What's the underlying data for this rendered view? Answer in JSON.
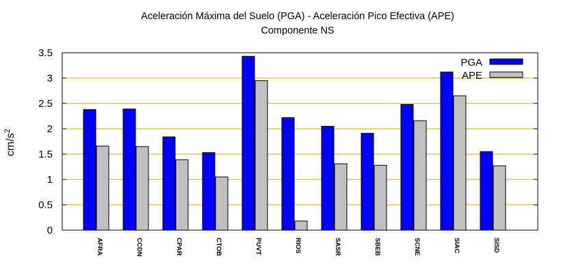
{
  "chart_data": {
    "type": "bar",
    "title": "Aceleración Máxima del Suelo (PGA) -  Aceleración Pico Efectiva (APE)",
    "subtitle": "Componente NS",
    "ylabel_base": "cm/s",
    "ylabel_sup": "2",
    "ylim": [
      0,
      3.5
    ],
    "yticks": [
      0,
      0.5,
      1,
      1.5,
      2,
      2.5,
      3,
      3.5
    ],
    "ytick_labels": [
      "0",
      "0.5",
      "1",
      "1.5",
      "2",
      "2.5",
      "3",
      "3.5"
    ],
    "grid": true,
    "legend_position": "top-right",
    "categories": [
      "AFRA",
      "CCDN",
      "CPAR",
      "CTOB",
      "PUVT",
      "RIOS",
      "SASR",
      "SBEB",
      "SCNE",
      "SIAC",
      "SISD"
    ],
    "series": [
      {
        "name": "PGA",
        "color": "#0000ff",
        "values": [
          2.38,
          2.39,
          1.84,
          1.53,
          3.43,
          2.22,
          2.05,
          1.91,
          2.48,
          3.12,
          1.55
        ]
      },
      {
        "name": "APE",
        "color": "#c0c0c0",
        "values": [
          1.66,
          1.65,
          1.39,
          1.05,
          2.95,
          0.18,
          1.31,
          1.28,
          2.16,
          2.65,
          1.27
        ]
      }
    ],
    "grid_color": "#e0a000"
  }
}
